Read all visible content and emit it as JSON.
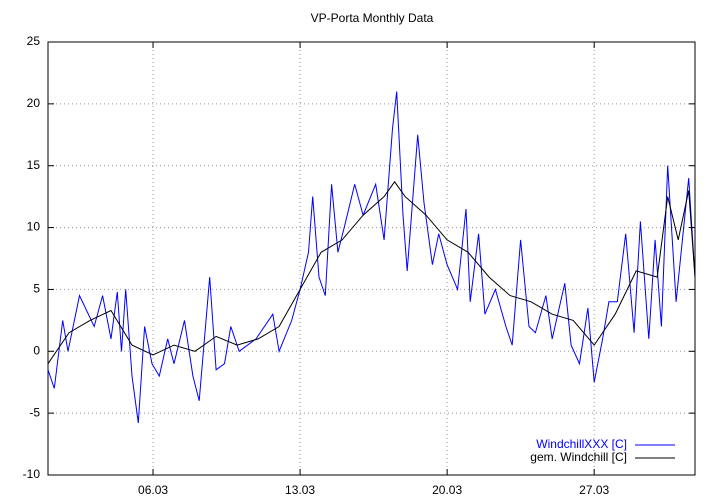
{
  "chart_data": {
    "type": "line",
    "title": "VP-Porta Monthly Data",
    "xlim": [
      1,
      31.8
    ],
    "ylim": [
      -10,
      25
    ],
    "xticks": [
      {
        "value": 6,
        "label": "06.03"
      },
      {
        "value": 13,
        "label": "13.03"
      },
      {
        "value": 20,
        "label": "20.03"
      },
      {
        "value": 27,
        "label": "27.03"
      }
    ],
    "yticks": [
      -10,
      -5,
      0,
      5,
      10,
      15,
      20,
      25
    ],
    "grid": true,
    "legend": "lower right",
    "series": [
      {
        "name": "WindchillXXX [C]",
        "color": "#0000ff",
        "x": [
          1.0,
          1.3,
          1.7,
          1.95,
          2.5,
          3.2,
          3.6,
          4.0,
          4.3,
          4.5,
          4.7,
          5.0,
          5.3,
          5.6,
          5.95,
          6.3,
          6.7,
          7.0,
          7.5,
          7.9,
          8.2,
          8.7,
          9.0,
          9.4,
          9.7,
          10.1,
          10.9,
          11.7,
          12.0,
          12.6,
          13.0,
          13.4,
          13.6,
          13.9,
          14.2,
          14.5,
          14.8,
          15.1,
          15.6,
          16.0,
          16.6,
          17.0,
          17.4,
          17.6,
          17.9,
          18.1,
          18.6,
          18.9,
          19.3,
          19.6,
          20.0,
          20.5,
          20.9,
          21.1,
          21.5,
          21.8,
          22.3,
          22.8,
          23.1,
          23.5,
          23.9,
          24.2,
          24.7,
          25.0,
          25.6,
          25.9,
          26.3,
          26.7,
          27.0,
          27.4,
          27.7,
          28.1,
          28.5,
          28.9,
          29.2,
          29.6,
          29.9,
          30.2,
          30.5,
          30.9,
          31.5,
          31.8
        ],
        "values": [
          -1.5,
          -3,
          2.5,
          0,
          4.5,
          2,
          4.5,
          1,
          4.8,
          0,
          5,
          -2,
          -5.8,
          2,
          -1,
          -2,
          1,
          -1,
          2.5,
          -2,
          -4,
          6,
          -1.5,
          -1,
          2,
          0,
          1,
          3,
          0,
          2.5,
          5,
          8,
          12.5,
          6,
          4.5,
          13.5,
          8,
          10,
          13.5,
          11,
          13.5,
          9,
          18,
          21,
          11,
          6.5,
          17.5,
          12,
          7,
          9.5,
          7,
          5,
          11.5,
          4,
          9.5,
          3,
          5,
          2,
          0.5,
          9,
          2,
          1.5,
          4.5,
          1,
          5.5,
          0.5,
          -1,
          3.5,
          -2.5,
          1,
          4,
          4,
          9.5,
          1.5,
          10.5,
          1,
          9,
          2,
          15,
          4,
          14,
          6
        ]
      },
      {
        "name": "gem. Windchill [C]",
        "color": "#000000",
        "x": [
          1,
          2,
          3,
          4,
          5,
          6,
          7,
          8,
          9,
          10,
          11,
          12,
          13,
          14,
          15,
          16,
          17,
          17.5,
          18,
          19,
          20,
          21,
          22,
          23,
          24,
          25,
          26,
          27,
          28,
          29,
          30,
          30.5,
          31,
          31.5,
          31.8
        ],
        "values": [
          -1,
          1.5,
          2.5,
          3.3,
          0.5,
          -0.3,
          0.5,
          0,
          1.2,
          0.5,
          1,
          2,
          5,
          8,
          9,
          11,
          12.5,
          13.7,
          12.5,
          11,
          9,
          8,
          6,
          4.5,
          4,
          3,
          2.5,
          0.5,
          3,
          6.5,
          6,
          12.5,
          9,
          13,
          6
        ]
      }
    ]
  }
}
